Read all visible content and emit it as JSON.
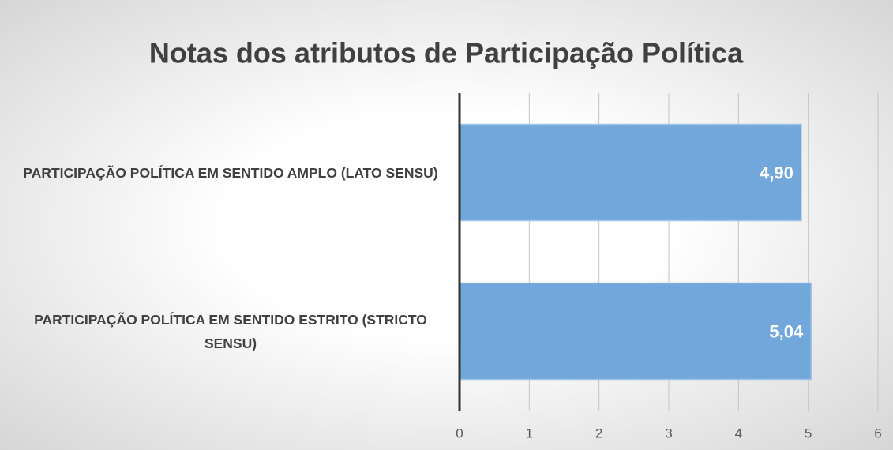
{
  "chart_data": {
    "type": "barh",
    "title": "Notas dos atributos de Participação Política",
    "categories": [
      "PARTICIPAÇÃO POLÍTICA EM SENTIDO AMPLO (LATO SENSU)",
      "PARTICIPAÇÃO POLÍTICA EM SENTIDO ESTRITO (STRICTO SENSU)"
    ],
    "values": [
      4.9,
      5.04
    ],
    "value_labels": [
      "4,90",
      "5,04"
    ],
    "color": "#71a7db",
    "xlim": [
      0,
      6
    ],
    "xticks": [
      0,
      1,
      2,
      3,
      4,
      5,
      6
    ],
    "grid": true
  }
}
